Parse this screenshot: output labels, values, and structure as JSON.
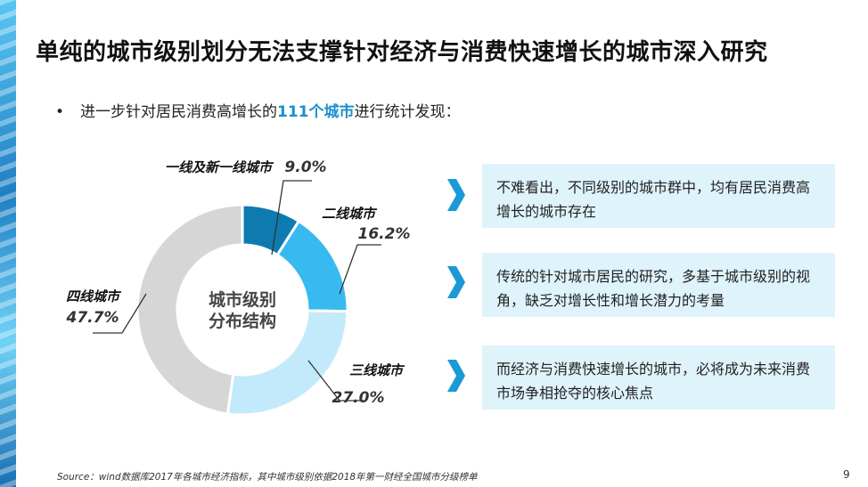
{
  "title": "单纯的城市级别划分无法支撑针对经济与消费快速增长的城市深入研究",
  "bullet": {
    "dot": "•",
    "pre": "进一步针对居民消费高增长的",
    "highlight": "111个城市",
    "post": "进行统计发现："
  },
  "chart_data": {
    "type": "pie",
    "center_label": [
      "城市级别",
      "分布结构"
    ],
    "categories": [
      "一线及新一线城市",
      "二线城市",
      "三线城市",
      "四线城市"
    ],
    "values": [
      9.0,
      16.2,
      27.0,
      47.7
    ],
    "value_labels": [
      "9.0%",
      "16.2%",
      "27.0%",
      "47.7%"
    ],
    "colors": [
      "#0d7bb0",
      "#38b9ef",
      "#c3eafb",
      "#d6d6d6"
    ]
  },
  "insights": [
    "不难看出，不同级别的城市群中，均有居民消费高增长的城市存在",
    "传统的针对城市居民的研究，多基于城市级别的视角，缺乏对增长性和增长潜力的考量",
    "而经济与消费快速增长的城市，必将成为未来消费市场争相抢夺的核心焦点"
  ],
  "accent_color": "#1a8fcc",
  "source": "Source：wind数据库2017年各城市经济指标，其中城市级别依据2018年第一财经全国城市分级榜单",
  "page_number": "9"
}
